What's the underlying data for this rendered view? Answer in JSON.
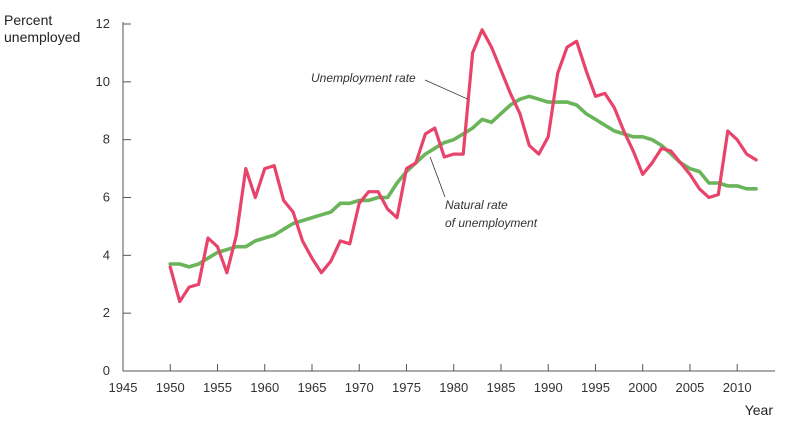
{
  "chart_data": {
    "type": "line",
    "title": "",
    "ylabel": "Percent unemployed",
    "ylabel_lines": [
      "Percent",
      "unemployed"
    ],
    "xlabel": "Year",
    "xlim": [
      1945,
      2014
    ],
    "ylim": [
      0,
      12
    ],
    "xticks": [
      1945,
      1950,
      1955,
      1960,
      1965,
      1970,
      1975,
      1980,
      1985,
      1990,
      1995,
      2000,
      2005,
      2010
    ],
    "yticks": [
      0,
      2,
      4,
      6,
      8,
      10,
      12
    ],
    "grid": false,
    "series": [
      {
        "name": "Unemployment rate",
        "color": "#e8436a",
        "points": [
          [
            1950,
            3.6
          ],
          [
            1951,
            2.4
          ],
          [
            1952,
            2.9
          ],
          [
            1953,
            3.0
          ],
          [
            1954,
            4.6
          ],
          [
            1955,
            4.3
          ],
          [
            1956,
            3.4
          ],
          [
            1957,
            4.7
          ],
          [
            1958,
            7.0
          ],
          [
            1959,
            6.0
          ],
          [
            1960,
            7.0
          ],
          [
            1961,
            7.1
          ],
          [
            1962,
            5.9
          ],
          [
            1963,
            5.5
          ],
          [
            1964,
            4.5
          ],
          [
            1965,
            3.9
          ],
          [
            1966,
            3.4
          ],
          [
            1967,
            3.8
          ],
          [
            1968,
            4.5
          ],
          [
            1969,
            4.4
          ],
          [
            1970,
            5.8
          ],
          [
            1971,
            6.2
          ],
          [
            1972,
            6.2
          ],
          [
            1973,
            5.6
          ],
          [
            1974,
            5.3
          ],
          [
            1975,
            7.0
          ],
          [
            1976,
            7.2
          ],
          [
            1977,
            8.2
          ],
          [
            1978,
            8.4
          ],
          [
            1979,
            7.4
          ],
          [
            1980,
            7.5
          ],
          [
            1981,
            7.5
          ],
          [
            1982,
            11.0
          ],
          [
            1983,
            11.8
          ],
          [
            1984,
            11.2
          ],
          [
            1985,
            10.4
          ],
          [
            1986,
            9.6
          ],
          [
            1987,
            8.9
          ],
          [
            1988,
            7.8
          ],
          [
            1989,
            7.5
          ],
          [
            1990,
            8.1
          ],
          [
            1991,
            10.3
          ],
          [
            1992,
            11.2
          ],
          [
            1993,
            11.4
          ],
          [
            1994,
            10.4
          ],
          [
            1995,
            9.5
          ],
          [
            1996,
            9.6
          ],
          [
            1997,
            9.1
          ],
          [
            1998,
            8.3
          ],
          [
            1999,
            7.6
          ],
          [
            2000,
            6.8
          ],
          [
            2001,
            7.2
          ],
          [
            2002,
            7.7
          ],
          [
            2003,
            7.6
          ],
          [
            2004,
            7.2
          ],
          [
            2005,
            6.8
          ],
          [
            2006,
            6.3
          ],
          [
            2007,
            6.0
          ],
          [
            2008,
            6.1
          ],
          [
            2009,
            8.3
          ],
          [
            2010,
            8.0
          ],
          [
            2011,
            7.5
          ],
          [
            2012,
            7.3
          ]
        ]
      },
      {
        "name": "Natural rate of unemployment",
        "color": "#6ab45a",
        "points": [
          [
            1950,
            3.7
          ],
          [
            1951,
            3.7
          ],
          [
            1952,
            3.6
          ],
          [
            1953,
            3.7
          ],
          [
            1954,
            3.9
          ],
          [
            1955,
            4.1
          ],
          [
            1956,
            4.2
          ],
          [
            1957,
            4.3
          ],
          [
            1958,
            4.3
          ],
          [
            1959,
            4.5
          ],
          [
            1960,
            4.6
          ],
          [
            1961,
            4.7
          ],
          [
            1962,
            4.9
          ],
          [
            1963,
            5.1
          ],
          [
            1964,
            5.2
          ],
          [
            1965,
            5.3
          ],
          [
            1966,
            5.4
          ],
          [
            1967,
            5.5
          ],
          [
            1968,
            5.8
          ],
          [
            1969,
            5.8
          ],
          [
            1970,
            5.9
          ],
          [
            1971,
            5.9
          ],
          [
            1972,
            6.0
          ],
          [
            1973,
            6.0
          ],
          [
            1974,
            6.5
          ],
          [
            1975,
            6.9
          ],
          [
            1976,
            7.2
          ],
          [
            1977,
            7.5
          ],
          [
            1978,
            7.7
          ],
          [
            1979,
            7.9
          ],
          [
            1980,
            8.0
          ],
          [
            1981,
            8.2
          ],
          [
            1982,
            8.4
          ],
          [
            1983,
            8.7
          ],
          [
            1984,
            8.6
          ],
          [
            1985,
            8.9
          ],
          [
            1986,
            9.2
          ],
          [
            1987,
            9.4
          ],
          [
            1988,
            9.5
          ],
          [
            1989,
            9.4
          ],
          [
            1990,
            9.3
          ],
          [
            1991,
            9.3
          ],
          [
            1992,
            9.3
          ],
          [
            1993,
            9.2
          ],
          [
            1994,
            8.9
          ],
          [
            1995,
            8.7
          ],
          [
            1996,
            8.5
          ],
          [
            1997,
            8.3
          ],
          [
            1998,
            8.2
          ],
          [
            1999,
            8.1
          ],
          [
            2000,
            8.1
          ],
          [
            2001,
            8.0
          ],
          [
            2002,
            7.8
          ],
          [
            2003,
            7.5
          ],
          [
            2004,
            7.2
          ],
          [
            2005,
            7.0
          ],
          [
            2006,
            6.9
          ],
          [
            2007,
            6.5
          ],
          [
            2008,
            6.5
          ],
          [
            2009,
            6.4
          ],
          [
            2010,
            6.4
          ],
          [
            2011,
            6.3
          ],
          [
            2012,
            6.3
          ]
        ]
      }
    ],
    "annotations": [
      {
        "lines": [
          "Unemployment rate"
        ],
        "target": [
          1981.5,
          9.4
        ],
        "anchor": "left"
      },
      {
        "lines": [
          "Natural rate",
          "of unemployment"
        ],
        "target": [
          1977.5,
          7.4
        ],
        "anchor": "left"
      }
    ]
  }
}
